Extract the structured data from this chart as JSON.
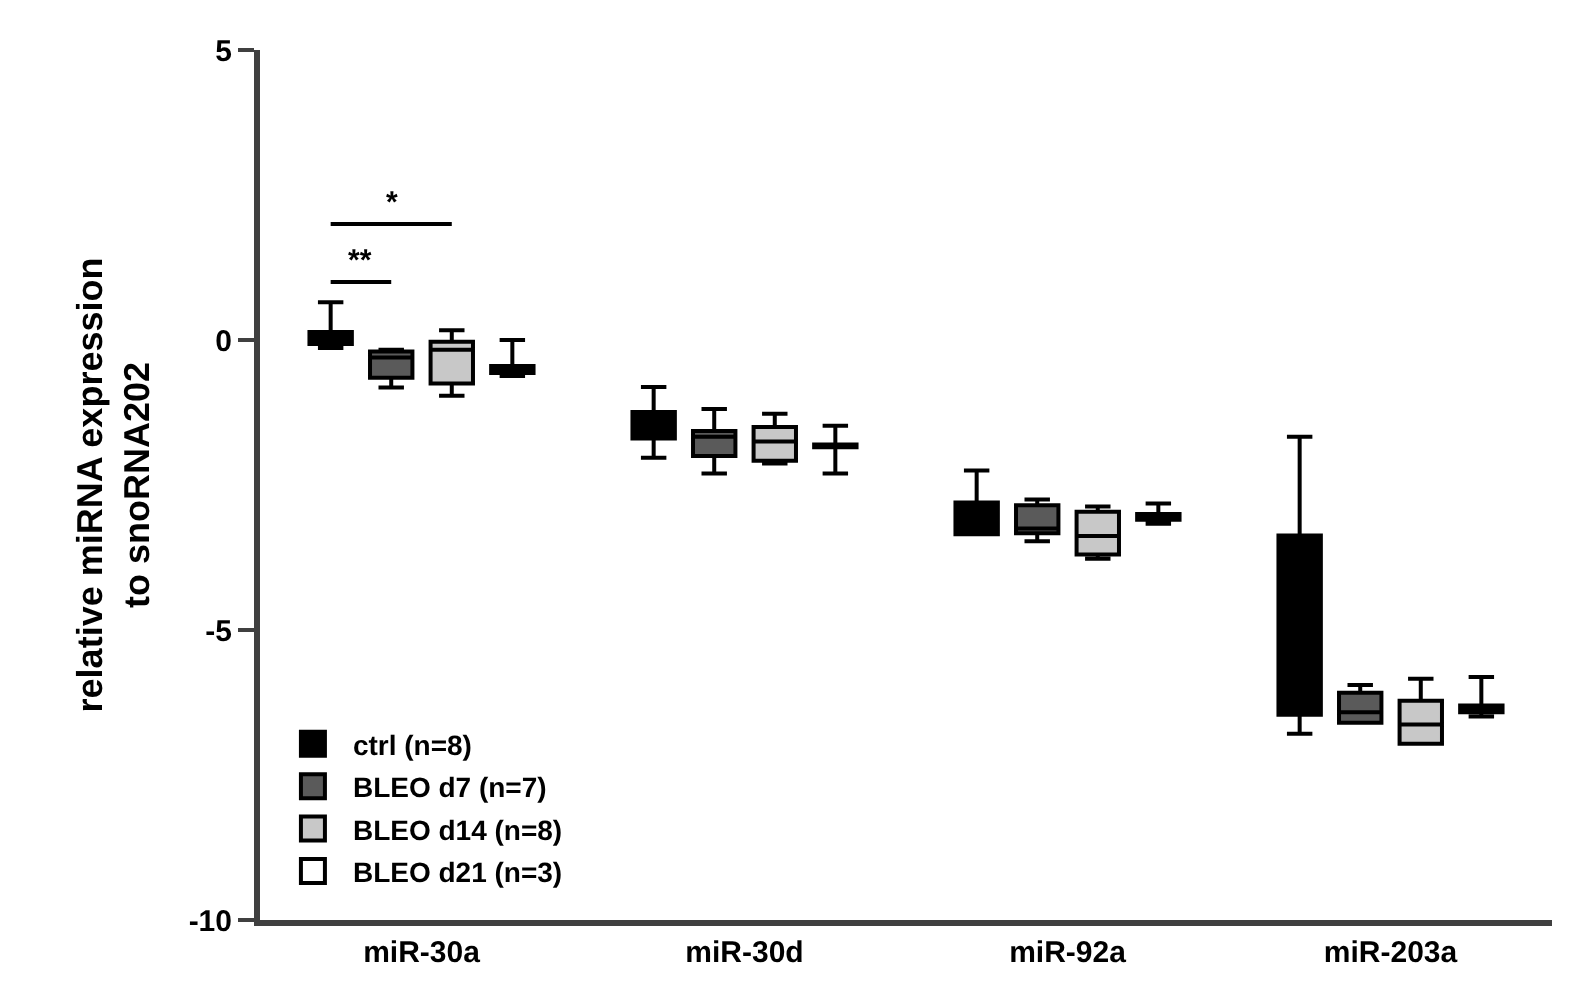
{
  "chart_data": {
    "type": "box",
    "ylabel": "relative miRNA expression\nto snoRNA202",
    "categories": [
      "miR-30a",
      "miR-30d",
      "miR-92a",
      "miR-203a"
    ],
    "ylim": [
      -10,
      5
    ],
    "yticks": [
      -10,
      -5,
      0,
      5
    ],
    "legend": "bottom left",
    "annotations": [
      "**",
      "*"
    ],
    "series": [
      {
        "name": "ctrl (n=8)",
        "color": "#000000",
        "boxes": [
          {
            "low": -0.14,
            "q1": -0.07,
            "median": 0.03,
            "q3": 0.14,
            "high": 0.65
          },
          {
            "low": -2.03,
            "q1": -1.7,
            "median": -1.5,
            "q3": -1.24,
            "high": -0.81
          },
          {
            "low": -3.35,
            "q1": -3.35,
            "median": -3.2,
            "q3": -2.8,
            "high": -2.25
          },
          {
            "low": -6.79,
            "q1": -6.46,
            "median": -6.4,
            "q3": -3.37,
            "high": -1.67
          }
        ]
      },
      {
        "name": "BLEO d7 (n=7)",
        "color": "#5a5a5a",
        "boxes": [
          {
            "low": -0.82,
            "q1": -0.65,
            "median": -0.3,
            "q3": -0.2,
            "high": -0.17
          },
          {
            "low": -2.3,
            "q1": -2.0,
            "median": -1.67,
            "q3": -1.57,
            "high": -1.19
          },
          {
            "low": -3.47,
            "q1": -3.33,
            "median": -3.25,
            "q3": -2.85,
            "high": -2.75
          },
          {
            "low": -6.6,
            "q1": -6.6,
            "median": -6.42,
            "q3": -6.08,
            "high": -5.95
          }
        ]
      },
      {
        "name": "BLEO d14 (n=8)",
        "color": "#c8c8c8",
        "boxes": [
          {
            "low": -0.96,
            "q1": -0.75,
            "median": -0.17,
            "q3": -0.03,
            "high": 0.17
          },
          {
            "low": -2.13,
            "q1": -2.08,
            "median": -1.75,
            "q3": -1.5,
            "high": -1.27
          },
          {
            "low": -3.77,
            "q1": -3.7,
            "median": -3.38,
            "q3": -2.96,
            "high": -2.87
          },
          {
            "low": -6.96,
            "q1": -6.96,
            "median": -6.63,
            "q3": -6.22,
            "high": -5.84
          }
        ]
      },
      {
        "name": "BLEO d21 (n=3)",
        "color": "#ffffff",
        "boxes": [
          {
            "low": -0.62,
            "q1": -0.57,
            "median": -0.5,
            "q3": -0.45,
            "high": 0.0
          },
          {
            "low": -2.3,
            "q1": -1.85,
            "median": -1.82,
            "q3": -1.8,
            "high": -1.48
          },
          {
            "low": -3.17,
            "q1": -3.1,
            "median": -3.06,
            "q3": -3.0,
            "high": -2.82
          },
          {
            "low": -6.49,
            "q1": -6.42,
            "median": -6.37,
            "q3": -6.3,
            "high": -5.81
          }
        ]
      }
    ]
  }
}
